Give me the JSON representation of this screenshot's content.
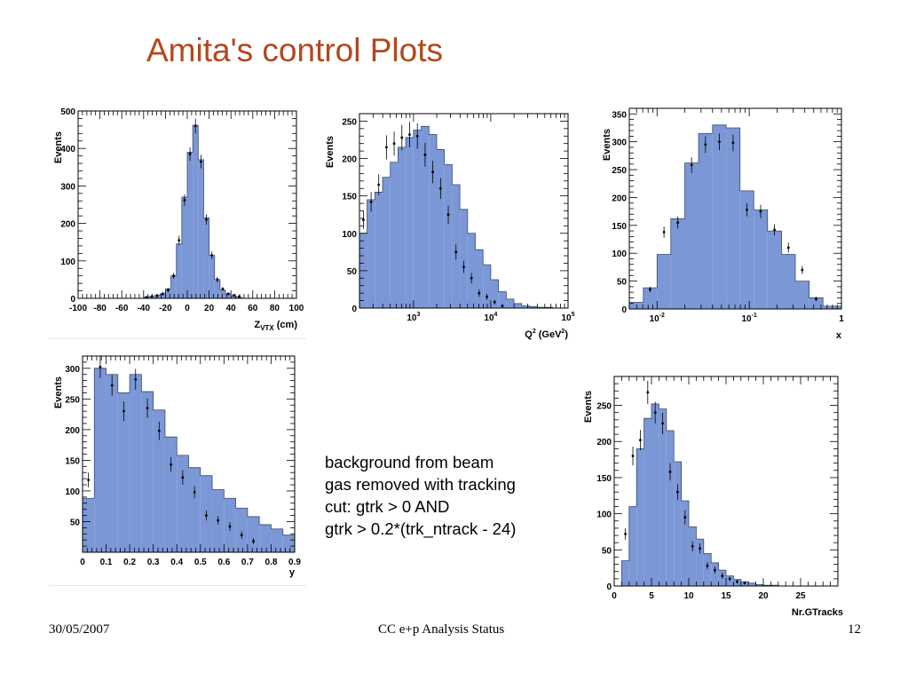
{
  "slide": {
    "title": "Amita's control Plots",
    "note_lines": [
      "background from beam",
      "gas removed with tracking",
      "cut: gtrk > 0 AND",
      "gtrk > 0.2*(trk_ntrack - 24)"
    ],
    "footer_date": "30/05/2007",
    "footer_center": "CC e+p Analysis Status",
    "footer_page": "12"
  },
  "colors": {
    "title": "#b3471b",
    "fill": "#7b97d6",
    "line": "#000000"
  },
  "chart_data": [
    {
      "id": "zvtx",
      "type": "bar",
      "ylabel": "Events",
      "xlabel": "Z",
      "xlabel_sub": "VTX",
      "xlabel_unit": "(cm)",
      "xlim": [
        -100,
        100
      ],
      "ylim": [
        0,
        500
      ],
      "xticks": [
        -100,
        -80,
        -60,
        -40,
        -20,
        0,
        20,
        40,
        60,
        80,
        100
      ],
      "xtick_labels": [
        "-100",
        "-80",
        "-60",
        "-40",
        "-20",
        "0",
        "20",
        "40",
        "60",
        "80",
        "100"
      ],
      "yticks": [
        0,
        100,
        200,
        300,
        400,
        500
      ],
      "ytick_labels": [
        "0",
        "100",
        "200",
        "300",
        "400",
        "500"
      ],
      "bin_edges": [
        -40,
        -35,
        -30,
        -25,
        -20,
        -15,
        -10,
        -5,
        0,
        5,
        10,
        15,
        20,
        25,
        30,
        35,
        40,
        45,
        50
      ],
      "mc_values": [
        3,
        5,
        8,
        12,
        25,
        60,
        145,
        270,
        390,
        462,
        370,
        215,
        115,
        50,
        22,
        12,
        6,
        3
      ],
      "data_points": [
        {
          "x": -37.5,
          "y": 3,
          "e": 3
        },
        {
          "x": -32.5,
          "y": 5,
          "e": 3
        },
        {
          "x": -27.5,
          "y": 7,
          "e": 4
        },
        {
          "x": -22.5,
          "y": 12,
          "e": 5
        },
        {
          "x": -17.5,
          "y": 22,
          "e": 6
        },
        {
          "x": -12.5,
          "y": 60,
          "e": 8
        },
        {
          "x": -7.5,
          "y": 155,
          "e": 12
        },
        {
          "x": -2.5,
          "y": 262,
          "e": 15
        },
        {
          "x": 2.5,
          "y": 385,
          "e": 18
        },
        {
          "x": 7.5,
          "y": 460,
          "e": 20
        },
        {
          "x": 12.5,
          "y": 365,
          "e": 18
        },
        {
          "x": 17.5,
          "y": 210,
          "e": 14
        },
        {
          "x": 22.5,
          "y": 115,
          "e": 10
        },
        {
          "x": 27.5,
          "y": 50,
          "e": 7
        },
        {
          "x": 32.5,
          "y": 25,
          "e": 5
        },
        {
          "x": 37.5,
          "y": 12,
          "e": 4
        },
        {
          "x": 42.5,
          "y": 8,
          "e": 3
        },
        {
          "x": 47.5,
          "y": 5,
          "e": 3
        }
      ]
    },
    {
      "id": "q2",
      "type": "bar",
      "xscale": "log",
      "ylabel": "Events",
      "xlabel": "Q",
      "xlabel_sup": "2",
      "xlabel_unit": "(GeV",
      "xlabel_unit_sup": "2",
      "xlabel_unit_end": ")",
      "xlim": [
        200,
        100000
      ],
      "ylim": [
        0,
        260
      ],
      "xticks": [
        1000,
        10000,
        100000
      ],
      "xtick_labels": [
        {
          "base": "10",
          "exp": "3"
        },
        {
          "base": "10",
          "exp": "4"
        },
        {
          "base": "10",
          "exp": "5"
        }
      ],
      "yticks": [
        0,
        50,
        100,
        150,
        200,
        250
      ],
      "ytick_labels": [
        "0",
        "50",
        "100",
        "150",
        "200",
        "250"
      ],
      "bin_edges": [
        200,
        251,
        316,
        398,
        501,
        631,
        794,
        1000,
        1259,
        1585,
        1995,
        2512,
        3162,
        3981,
        5012,
        6310,
        7943,
        10000,
        12589,
        15849,
        19953,
        25119,
        31623,
        39811,
        50119,
        63096,
        79433,
        100000
      ],
      "mc_values": [
        100,
        145,
        155,
        175,
        195,
        215,
        228,
        238,
        243,
        232,
        212,
        192,
        165,
        132,
        100,
        78,
        58,
        38,
        22,
        12,
        6,
        3,
        2,
        1,
        1,
        0,
        0
      ],
      "data_points": [
        {
          "x": 225,
          "y": 118,
          "e": 12
        },
        {
          "x": 283,
          "y": 142,
          "e": 13
        },
        {
          "x": 355,
          "y": 165,
          "e": 14
        },
        {
          "x": 447,
          "y": 215,
          "e": 16
        },
        {
          "x": 562,
          "y": 220,
          "e": 16
        },
        {
          "x": 708,
          "y": 228,
          "e": 17
        },
        {
          "x": 891,
          "y": 232,
          "e": 17
        },
        {
          "x": 1122,
          "y": 230,
          "e": 17
        },
        {
          "x": 1413,
          "y": 205,
          "e": 16
        },
        {
          "x": 1778,
          "y": 182,
          "e": 15
        },
        {
          "x": 2239,
          "y": 160,
          "e": 14
        },
        {
          "x": 2818,
          "y": 125,
          "e": 12
        },
        {
          "x": 3548,
          "y": 75,
          "e": 10
        },
        {
          "x": 4467,
          "y": 55,
          "e": 8
        },
        {
          "x": 5623,
          "y": 40,
          "e": 7
        },
        {
          "x": 7079,
          "y": 20,
          "e": 5
        },
        {
          "x": 8913,
          "y": 15,
          "e": 4
        },
        {
          "x": 11220,
          "y": 8,
          "e": 3
        },
        {
          "x": 14125,
          "y": 3,
          "e": 2
        }
      ]
    },
    {
      "id": "x",
      "type": "bar",
      "xscale": "log",
      "ylabel": "Events",
      "xlabel": "x",
      "xlim": [
        0.005,
        1
      ],
      "ylim": [
        0,
        360
      ],
      "xticks": [
        0.01,
        0.1,
        1
      ],
      "xtick_labels": [
        {
          "base": "10",
          "exp": "-2"
        },
        {
          "base": "10",
          "exp": "-1"
        },
        {
          "base": "1",
          "exp": ""
        }
      ],
      "yticks": [
        0,
        50,
        100,
        150,
        200,
        250,
        300,
        350
      ],
      "ytick_labels": [
        "0",
        "50",
        "100",
        "150",
        "200",
        "250",
        "300",
        "350"
      ],
      "bin_edges": [
        0.005,
        0.0071,
        0.01,
        0.0141,
        0.02,
        0.0282,
        0.04,
        0.0562,
        0.0794,
        0.112,
        0.158,
        0.224,
        0.316,
        0.447,
        0.631,
        1.0
      ],
      "mc_values": [
        12,
        38,
        98,
        162,
        262,
        315,
        330,
        325,
        212,
        178,
        140,
        98,
        50,
        20,
        5
      ],
      "data_points": [
        {
          "x": 0.0084,
          "y": 35,
          "e": 5
        },
        {
          "x": 0.0119,
          "y": 138,
          "e": 10
        },
        {
          "x": 0.0168,
          "y": 155,
          "e": 11
        },
        {
          "x": 0.0237,
          "y": 258,
          "e": 14
        },
        {
          "x": 0.0335,
          "y": 295,
          "e": 15
        },
        {
          "x": 0.0474,
          "y": 300,
          "e": 15
        },
        {
          "x": 0.0668,
          "y": 298,
          "e": 15
        },
        {
          "x": 0.0943,
          "y": 178,
          "e": 12
        },
        {
          "x": 0.133,
          "y": 175,
          "e": 12
        },
        {
          "x": 0.188,
          "y": 142,
          "e": 10
        },
        {
          "x": 0.266,
          "y": 110,
          "e": 9
        },
        {
          "x": 0.376,
          "y": 70,
          "e": 7
        },
        {
          "x": 0.531,
          "y": 18,
          "e": 4
        }
      ]
    },
    {
      "id": "y",
      "type": "bar",
      "ylabel": "Events",
      "xlabel": "y",
      "xlim": [
        0,
        0.9
      ],
      "ylim": [
        0,
        320
      ],
      "xticks": [
        0,
        0.1,
        0.2,
        0.3,
        0.4,
        0.5,
        0.6,
        0.7,
        0.8,
        0.9
      ],
      "xtick_labels": [
        "0",
        "0.1",
        "0.2",
        "0.3",
        "0.4",
        "0.5",
        "0.6",
        "0.7",
        "0.8",
        "0.9"
      ],
      "yticks": [
        50,
        100,
        150,
        200,
        250,
        300
      ],
      "ytick_labels": [
        "50",
        "100",
        "150",
        "200",
        "250",
        "300"
      ],
      "bin_edges": [
        0,
        0.05,
        0.1,
        0.15,
        0.2,
        0.25,
        0.3,
        0.35,
        0.4,
        0.45,
        0.5,
        0.55,
        0.6,
        0.65,
        0.7,
        0.75,
        0.8,
        0.85,
        0.9
      ],
      "mc_values": [
        88,
        300,
        290,
        260,
        290,
        262,
        232,
        188,
        158,
        138,
        125,
        102,
        88,
        72,
        58,
        45,
        38,
        28
      ],
      "data_points": [
        {
          "x": 0.025,
          "y": 118,
          "e": 12
        },
        {
          "x": 0.075,
          "y": 302,
          "e": 18
        },
        {
          "x": 0.125,
          "y": 272,
          "e": 17
        },
        {
          "x": 0.175,
          "y": 230,
          "e": 16
        },
        {
          "x": 0.225,
          "y": 282,
          "e": 17
        },
        {
          "x": 0.275,
          "y": 235,
          "e": 16
        },
        {
          "x": 0.325,
          "y": 198,
          "e": 15
        },
        {
          "x": 0.375,
          "y": 143,
          "e": 12
        },
        {
          "x": 0.425,
          "y": 122,
          "e": 12
        },
        {
          "x": 0.475,
          "y": 98,
          "e": 10
        },
        {
          "x": 0.525,
          "y": 60,
          "e": 8
        },
        {
          "x": 0.575,
          "y": 52,
          "e": 7
        },
        {
          "x": 0.625,
          "y": 42,
          "e": 7
        },
        {
          "x": 0.675,
          "y": 28,
          "e": 6
        },
        {
          "x": 0.725,
          "y": 18,
          "e": 5
        }
      ]
    },
    {
      "id": "ntracks",
      "type": "bar",
      "ylabel": "Events",
      "xlabel": "Nr.GTracks",
      "xlim": [
        0,
        30
      ],
      "ylim": [
        0,
        290
      ],
      "xticks": [
        0,
        5,
        10,
        15,
        20,
        25
      ],
      "xtick_labels": [
        "0",
        "5",
        "10",
        "15",
        "20",
        "25"
      ],
      "yticks": [
        0,
        50,
        100,
        150,
        200,
        250
      ],
      "ytick_labels": [
        "0",
        "50",
        "100",
        "150",
        "200",
        "250"
      ],
      "bin_edges": [
        1,
        2,
        3,
        4,
        5,
        6,
        7,
        8,
        9,
        10,
        11,
        12,
        13,
        14,
        15,
        16,
        17,
        18,
        19,
        20,
        21,
        22
      ],
      "mc_values": [
        35,
        110,
        190,
        232,
        252,
        245,
        215,
        172,
        118,
        82,
        65,
        45,
        32,
        22,
        14,
        9,
        6,
        4,
        2,
        1,
        1
      ],
      "data_points": [
        {
          "x": 1.5,
          "y": 72,
          "e": 8
        },
        {
          "x": 2.5,
          "y": 180,
          "e": 13
        },
        {
          "x": 3.5,
          "y": 202,
          "e": 14
        },
        {
          "x": 4.5,
          "y": 268,
          "e": 16
        },
        {
          "x": 5.5,
          "y": 240,
          "e": 15
        },
        {
          "x": 6.5,
          "y": 225,
          "e": 15
        },
        {
          "x": 7.5,
          "y": 158,
          "e": 12
        },
        {
          "x": 8.5,
          "y": 130,
          "e": 11
        },
        {
          "x": 9.5,
          "y": 95,
          "e": 10
        },
        {
          "x": 10.5,
          "y": 55,
          "e": 7
        },
        {
          "x": 11.5,
          "y": 52,
          "e": 7
        },
        {
          "x": 12.5,
          "y": 28,
          "e": 5
        },
        {
          "x": 13.5,
          "y": 22,
          "e": 5
        },
        {
          "x": 14.5,
          "y": 14,
          "e": 4
        },
        {
          "x": 15.5,
          "y": 10,
          "e": 3
        },
        {
          "x": 16.5,
          "y": 6,
          "e": 3
        },
        {
          "x": 17.5,
          "y": 4,
          "e": 2
        }
      ]
    }
  ]
}
